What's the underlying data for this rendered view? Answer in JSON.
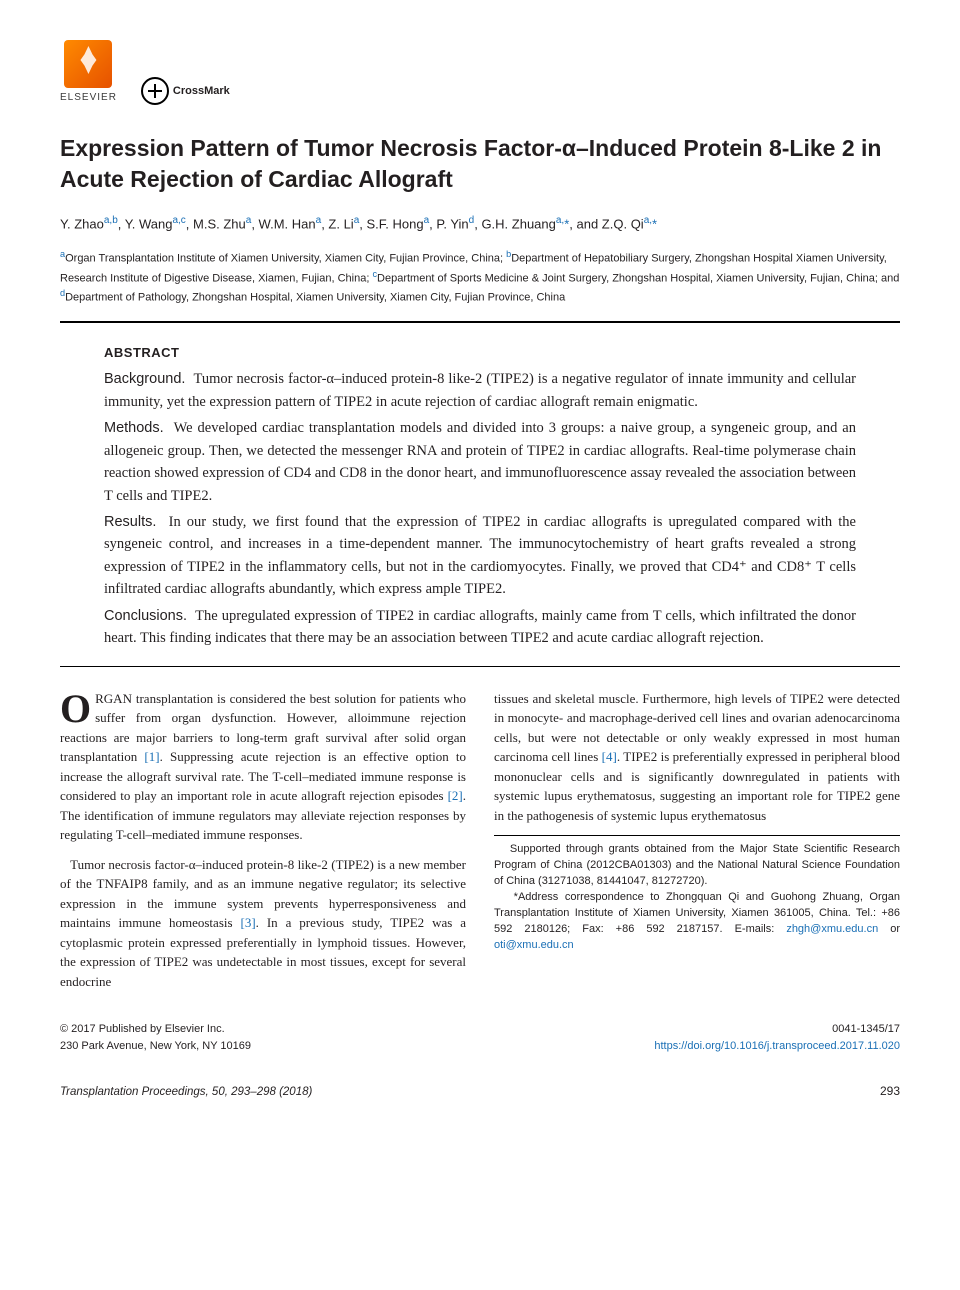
{
  "logos": {
    "elsevier_label": "ELSEVIER",
    "crossmark_label": "CrossMark"
  },
  "title": "Expression Pattern of Tumor Necrosis Factor-α–Induced Protein 8-Like 2 in Acute Rejection of Cardiac Allograft",
  "authors_html": "Y. Zhao<sup>a,b</sup>, Y. Wang<sup>a,c</sup>, M.S. Zhu<sup>a</sup>, W.M. Han<sup>a</sup>, Z. Li<sup>a</sup>, S.F. Hong<sup>a</sup>, P. Yin<sup>d</sup>, G.H. Zhuang<sup>a,</sup><span class='star'>*</span>, and Z.Q. Qi<sup>a,</sup><span class='star'>*</span>",
  "affiliations_html": "<sup>a</sup>Organ Transplantation Institute of Xiamen University, Xiamen City, Fujian Province, China; <sup>b</sup>Department of Hepatobiliary Surgery, Zhongshan Hospital Xiamen University, Research Institute of Digestive Disease, Xiamen, Fujian, China; <sup>c</sup>Department of Sports Medicine & Joint Surgery, Zhongshan Hospital, Xiamen University, Fujian, China; and <sup>d</sup>Department of Pathology, Zhongshan Hospital, Xiamen University, Xiamen City, Fujian Province, China",
  "abstract": {
    "label": "ABSTRACT",
    "background_label": "Background.",
    "background": "Tumor necrosis factor-α–induced protein-8 like-2 (TIPE2) is a negative regulator of innate immunity and cellular immunity, yet the expression pattern of TIPE2 in acute rejection of cardiac allograft remain enigmatic.",
    "methods_label": "Methods.",
    "methods": "We developed cardiac transplantation models and divided into 3 groups: a naive group, a syngeneic group, and an allogeneic group. Then, we detected the messenger RNA and protein of TIPE2 in cardiac allografts. Real-time polymerase chain reaction showed expression of CD4 and CD8 in the donor heart, and immunofluorescence assay revealed the association between T cells and TIPE2.",
    "results_label": "Results.",
    "results": "In our study, we first found that the expression of TIPE2 in cardiac allografts is upregulated compared with the syngeneic control, and increases in a time-dependent manner. The immunocytochemistry of heart grafts revealed a strong expression of TIPE2 in the inflammatory cells, but not in the cardiomyocytes. Finally, we proved that CD4⁺ and CD8⁺ T cells infiltrated cardiac allografts abundantly, which express ample TIPE2.",
    "conclusions_label": "Conclusions.",
    "conclusions": "The upregulated expression of TIPE2 in cardiac allografts, mainly came from T cells, which infiltrated the donor heart. This finding indicates that there may be an association between TIPE2 and acute cardiac allograft rejection."
  },
  "body": {
    "left_p1": "ORGAN transplantation is considered the best solution for patients who suffer from organ dysfunction. However, alloimmune rejection reactions are major barriers to long-term graft survival after solid organ transplantation",
    "cite1": "[1]",
    "left_p1b": ". Suppressing acute rejection is an effective option to increase the allograft survival rate. The T-cell–mediated immune response is considered to play an important role in acute allograft rejection episodes ",
    "cite2": "[2]",
    "left_p1c": ". The identification of immune regulators may alleviate rejection responses by regulating T-cell–mediated immune responses.",
    "left_p2a": "Tumor necrosis factor-α–induced protein-8 like-2 (TIPE2) is a new member of the TNFAIP8 family, and as an immune negative regulator; its selective expression in the immune system prevents hyperresponsiveness and maintains immune homeostasis ",
    "cite3": "[3]",
    "left_p2b": ". In a previous study, TIPE2 was a cytoplasmic protein expressed preferentially in lymphoid tissues. However, the expression of TIPE2 was undetectable in most tissues, except for several endocrine",
    "right_p1a": "tissues and skeletal muscle. Furthermore, high levels of TIPE2 were detected in monocyte- and macrophage-derived cell lines and ovarian adenocarcinoma cells, but were not detectable or only weakly expressed in most human carcinoma cell lines ",
    "cite4": "[4]",
    "right_p1b": ". TIPE2 is preferentially expressed in peripheral blood mononuclear cells and is significantly downregulated in patients with systemic lupus erythematosus, suggesting an important role for TIPE2 gene in the pathogenesis of systemic lupus erythematosus"
  },
  "footnotes": {
    "funding": "Supported through grants obtained from the Major State Scientific Research Program of China (2012CBA01303) and the National Natural Science Foundation of China (31271038, 81441047, 81272720).",
    "corr": "*Address correspondence to Zhongquan Qi and Guohong Zhuang, Organ Transplantation Institute of Xiamen University, Xiamen 361005, China. Tel.: +86 592 2180126; Fax: +86 592 2187157. E-mails: ",
    "email1": "zhgh@xmu.edu.cn",
    "or": " or ",
    "email2": "oti@xmu.edu.cn"
  },
  "footer": {
    "copyright": "© 2017 Published by Elsevier Inc.",
    "address": "230 Park Avenue, New York, NY 10169",
    "issn": "0041-1345/17",
    "doi": "https://doi.org/10.1016/j.transproceed.2017.11.020"
  },
  "journal": {
    "citation": "Transplantation Proceedings, 50, 293–298 (2018)",
    "page": "293"
  },
  "colors": {
    "link": "#1a6fb5",
    "text": "#231f20"
  }
}
